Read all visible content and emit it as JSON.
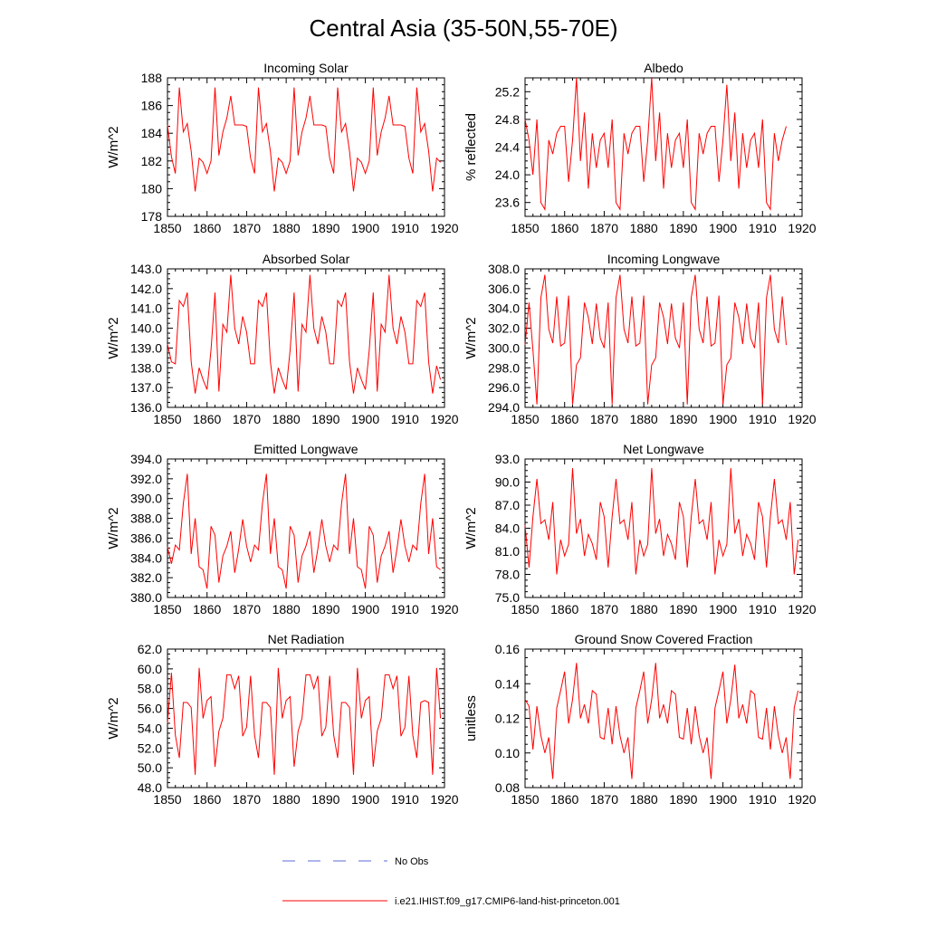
{
  "title": "Central Asia (35-50N,55-70E)",
  "legend": {
    "items": [
      {
        "label": "No Obs",
        "color": "#5b6bd6",
        "style": "dashed"
      },
      {
        "label": "i.e21.IHIST.f09_g17.CMIP6-land-hist-princeton.001",
        "color": "#ff0000",
        "style": "solid"
      }
    ]
  },
  "colors": {
    "series": "#ff0000",
    "axis": "#000000"
  },
  "chart_data": [
    {
      "type": "line",
      "title": "Incoming Solar",
      "xlabel": "",
      "ylabel": "W/m^2",
      "xlim": [
        1850,
        1920
      ],
      "ylim": [
        178,
        188
      ],
      "xticks": [
        "1850",
        "1860",
        "1870",
        "1880",
        "1890",
        "1900",
        "1910",
        "1920"
      ],
      "yticks": [
        "178",
        "180",
        "182",
        "184",
        "186",
        "188"
      ],
      "yticks_values": [
        178,
        180,
        182,
        184,
        186,
        188
      ],
      "x_start": 1850,
      "values": [
        184.6,
        182.3,
        181.1,
        187.3,
        184.1,
        184.7,
        182.7,
        179.8,
        182.2,
        181.9,
        181.1,
        182.0,
        187.3,
        182.4,
        184.1,
        185.1,
        186.7,
        184.6,
        184.6,
        184.6,
        184.5,
        182.2,
        181.1,
        187.3,
        184.1,
        184.7,
        182.7,
        179.8,
        182.2,
        181.9,
        181.1,
        182.0,
        187.3,
        182.4,
        184.1,
        185.1,
        186.7,
        184.6,
        184.6,
        184.6,
        184.5,
        182.2,
        181.1,
        187.3,
        184.1,
        184.7,
        182.7,
        179.8,
        182.2,
        181.9,
        181.1,
        182.0,
        187.3,
        182.4,
        184.1,
        185.1,
        186.7,
        184.6,
        184.6,
        184.6,
        184.5,
        182.2,
        181.1,
        187.3,
        184.1,
        184.7,
        182.7,
        179.8,
        182.2,
        181.9
      ]
    },
    {
      "type": "line",
      "title": "Albedo",
      "xlabel": "",
      "ylabel": "% reflected",
      "xlim": [
        1850,
        1920
      ],
      "ylim": [
        23.4,
        25.4
      ],
      "xticks": [
        "1850",
        "1860",
        "1870",
        "1880",
        "1890",
        "1900",
        "1910",
        "1920"
      ],
      "yticks": [
        "23.6",
        "24.0",
        "24.4",
        "24.8",
        "25.2"
      ],
      "yticks_values": [
        23.6,
        24.0,
        24.4,
        24.8,
        25.2
      ],
      "x_start": 1850,
      "values": [
        24.8,
        24.5,
        24.0,
        24.8,
        23.6,
        23.5,
        24.5,
        24.3,
        24.6,
        24.7,
        24.7,
        23.9,
        24.5,
        25.4,
        24.2,
        24.9,
        23.8,
        24.6,
        24.1,
        24.5,
        24.6,
        24.1,
        24.8,
        23.6,
        23.5,
        24.6,
        24.3,
        24.6,
        24.7,
        24.7,
        23.9,
        24.5,
        25.4,
        24.2,
        24.9,
        23.8,
        24.6,
        24.1,
        24.5,
        24.6,
        24.1,
        24.8,
        23.6,
        23.5,
        24.6,
        24.3,
        24.6,
        24.7,
        24.7,
        23.9,
        24.5,
        25.3,
        24.2,
        24.9,
        23.8,
        24.6,
        24.1,
        24.5,
        24.6,
        24.1,
        24.8,
        23.6,
        23.5,
        24.6,
        24.2,
        24.5,
        24.7
      ]
    },
    {
      "type": "line",
      "title": "Absorbed Solar",
      "xlabel": "",
      "ylabel": "W/m^2",
      "xlim": [
        1850,
        1920
      ],
      "ylim": [
        136.0,
        143.0
      ],
      "xticks": [
        "1850",
        "1860",
        "1870",
        "1880",
        "1890",
        "1900",
        "1910",
        "1920"
      ],
      "yticks": [
        "136.0",
        "137.0",
        "138.0",
        "139.0",
        "140.0",
        "141.0",
        "142.0",
        "143.0"
      ],
      "yticks_values": [
        136,
        137,
        138,
        139,
        140,
        141,
        142,
        143
      ],
      "x_start": 1850,
      "values": [
        139.2,
        138.3,
        138.2,
        141.4,
        141.1,
        141.8,
        138.3,
        136.7,
        138.0,
        137.4,
        136.9,
        138.9,
        141.8,
        136.8,
        140.2,
        139.8,
        142.7,
        140.0,
        139.2,
        140.6,
        139.8,
        138.2,
        138.2,
        141.4,
        141.1,
        141.8,
        138.3,
        136.7,
        138.0,
        137.4,
        136.9,
        138.9,
        141.8,
        136.8,
        140.2,
        139.8,
        142.7,
        140.0,
        139.2,
        140.6,
        139.8,
        138.2,
        138.2,
        141.4,
        141.1,
        141.8,
        138.3,
        136.7,
        138.0,
        137.4,
        136.9,
        138.9,
        141.8,
        136.8,
        140.2,
        139.8,
        142.7,
        140.0,
        139.2,
        140.6,
        139.8,
        138.2,
        138.2,
        141.4,
        141.1,
        141.8,
        138.3,
        136.7,
        138.1,
        137.4
      ]
    },
    {
      "type": "line",
      "title": "Incoming Longwave",
      "xlabel": "",
      "ylabel": "W/m^2",
      "xlim": [
        1850,
        1920
      ],
      "ylim": [
        294.0,
        308.0
      ],
      "xticks": [
        "1850",
        "1860",
        "1870",
        "1880",
        "1890",
        "1900",
        "1910",
        "1920"
      ],
      "yticks": [
        "294.0",
        "296.0",
        "298.0",
        "300.0",
        "302.0",
        "304.0",
        "306.0",
        "308.0"
      ],
      "yticks_values": [
        294,
        296,
        298,
        300,
        302,
        304,
        306,
        308
      ],
      "x_start": 1850,
      "values": [
        300.3,
        304.6,
        299.8,
        294.3,
        305.1,
        307.4,
        301.9,
        300.5,
        305.2,
        300.2,
        300.5,
        305.3,
        294.3,
        298.3,
        299.0,
        304.6,
        303.1,
        300.4,
        304.5,
        301.0,
        300.0,
        304.6,
        294.3,
        305.1,
        307.4,
        301.9,
        300.5,
        305.2,
        300.2,
        300.5,
        305.3,
        294.3,
        298.3,
        299.0,
        304.6,
        303.1,
        300.4,
        304.5,
        301.0,
        300.0,
        304.6,
        294.3,
        305.1,
        307.4,
        301.9,
        300.5,
        305.2,
        300.2,
        300.5,
        305.3,
        294.3,
        298.3,
        299.0,
        304.6,
        303.1,
        300.4,
        304.5,
        301.0,
        300.0,
        304.6,
        294.3,
        305.1,
        307.4,
        301.9,
        300.5,
        305.2,
        300.3
      ]
    },
    {
      "type": "line",
      "title": "Emitted Longwave",
      "xlabel": "",
      "ylabel": "W/m^2",
      "xlim": [
        1850,
        1920
      ],
      "ylim": [
        380.0,
        394.0
      ],
      "xticks": [
        "1850",
        "1860",
        "1870",
        "1880",
        "1890",
        "1900",
        "1910",
        "1920"
      ],
      "yticks": [
        "380.0",
        "382.0",
        "384.0",
        "386.0",
        "388.0",
        "390.0",
        "392.0",
        "394.0"
      ],
      "yticks_values": [
        380,
        382,
        384,
        386,
        388,
        390,
        392,
        394
      ],
      "x_start": 1850,
      "values": [
        385.1,
        383.4,
        385.3,
        384.8,
        389.5,
        392.5,
        384.4,
        388.0,
        383.1,
        382.8,
        380.9,
        387.2,
        386.3,
        381.5,
        384.2,
        385.2,
        386.7,
        382.5,
        384.9,
        387.9,
        385.2,
        383.6,
        385.3,
        384.8,
        389.5,
        392.5,
        384.4,
        388.0,
        383.1,
        382.8,
        380.9,
        387.2,
        386.3,
        381.5,
        384.2,
        385.2,
        386.7,
        382.5,
        384.9,
        387.9,
        385.2,
        383.6,
        385.3,
        384.8,
        389.5,
        392.5,
        384.4,
        388.0,
        383.1,
        382.8,
        380.9,
        387.2,
        386.3,
        381.5,
        384.2,
        385.2,
        386.7,
        382.5,
        384.9,
        387.9,
        385.2,
        383.6,
        385.3,
        384.8,
        389.5,
        392.5,
        384.4,
        388.0,
        383.1,
        382.8
      ]
    },
    {
      "type": "line",
      "title": "Net Longwave",
      "xlabel": "",
      "ylabel": "W/m^2",
      "xlim": [
        1850,
        1920
      ],
      "ylim": [
        75.0,
        93.0
      ],
      "xticks": [
        "1850",
        "1860",
        "1870",
        "1880",
        "1890",
        "1900",
        "1910",
        "1920"
      ],
      "yticks": [
        "75.0",
        "78.0",
        "81.0",
        "84.0",
        "87.0",
        "90.0",
        "93.0"
      ],
      "yticks_values": [
        75,
        78,
        81,
        84,
        87,
        90,
        93
      ],
      "x_start": 1850,
      "values": [
        84.4,
        78.9,
        85.5,
        90.4,
        84.6,
        85.1,
        82.5,
        87.4,
        78.0,
        82.5,
        80.4,
        81.9,
        91.8,
        83.3,
        85.2,
        80.4,
        83.2,
        82.0,
        79.9,
        87.4,
        85.5,
        78.9,
        85.5,
        90.4,
        84.6,
        85.1,
        82.5,
        87.4,
        78.0,
        82.5,
        80.4,
        81.9,
        91.8,
        83.3,
        85.2,
        80.4,
        83.2,
        82.0,
        79.9,
        87.4,
        85.5,
        78.9,
        85.5,
        90.4,
        84.6,
        85.1,
        82.5,
        87.4,
        78.0,
        82.5,
        80.4,
        81.9,
        91.8,
        83.3,
        85.2,
        80.4,
        83.2,
        82.0,
        79.9,
        87.4,
        85.5,
        78.9,
        85.5,
        90.4,
        84.6,
        85.1,
        82.5,
        87.4,
        78.0,
        82.5
      ]
    },
    {
      "type": "line",
      "title": "Net Radiation",
      "xlabel": "",
      "ylabel": "W/m^2",
      "xlim": [
        1850,
        1920
      ],
      "ylim": [
        48.0,
        62.0
      ],
      "xticks": [
        "1850",
        "1860",
        "1870",
        "1880",
        "1890",
        "1900",
        "1910",
        "1920"
      ],
      "yticks": [
        "48.0",
        "50.0",
        "52.0",
        "54.0",
        "56.0",
        "58.0",
        "60.0",
        "62.0"
      ],
      "yticks_values": [
        48,
        50,
        52,
        54,
        56,
        58,
        60,
        62
      ],
      "x_start": 1850,
      "values": [
        54.5,
        59.6,
        53.3,
        51.0,
        56.6,
        56.6,
        56.1,
        49.3,
        60.1,
        55.0,
        56.8,
        57.2,
        50.1,
        53.7,
        55.0,
        59.4,
        59.4,
        58.0,
        59.3,
        53.2,
        54.1,
        59.3,
        53.3,
        51.0,
        56.6,
        56.6,
        56.1,
        49.3,
        60.1,
        55.0,
        56.8,
        57.2,
        50.1,
        53.7,
        55.0,
        59.4,
        59.4,
        58.0,
        59.3,
        53.2,
        54.1,
        59.3,
        53.3,
        51.0,
        56.6,
        56.6,
        56.1,
        49.3,
        60.1,
        55.0,
        56.8,
        57.2,
        50.1,
        53.7,
        55.0,
        59.4,
        59.4,
        58.0,
        59.3,
        53.2,
        54.1,
        59.3,
        53.3,
        51.0,
        56.6,
        56.8,
        56.6,
        49.3,
        60.1,
        55.0
      ]
    },
    {
      "type": "line",
      "title": "Ground Snow Covered Fraction",
      "xlabel": "",
      "ylabel": "unitless",
      "xlim": [
        1850,
        1920
      ],
      "ylim": [
        0.08,
        0.16
      ],
      "xticks": [
        "1850",
        "1860",
        "1870",
        "1880",
        "1890",
        "1900",
        "1910",
        "1920"
      ],
      "yticks": [
        "0.08",
        "0.10",
        "0.12",
        "0.14",
        "0.16"
      ],
      "yticks_values": [
        0.08,
        0.1,
        0.12,
        0.14,
        0.16
      ],
      "x_start": 1850,
      "values": [
        0.131,
        0.127,
        0.102,
        0.127,
        0.11,
        0.1,
        0.109,
        0.085,
        0.126,
        0.136,
        0.147,
        0.117,
        0.131,
        0.152,
        0.12,
        0.128,
        0.117,
        0.136,
        0.134,
        0.109,
        0.108,
        0.126,
        0.105,
        0.127,
        0.11,
        0.1,
        0.109,
        0.085,
        0.126,
        0.136,
        0.147,
        0.117,
        0.131,
        0.152,
        0.12,
        0.128,
        0.117,
        0.136,
        0.134,
        0.109,
        0.108,
        0.126,
        0.105,
        0.127,
        0.11,
        0.1,
        0.109,
        0.085,
        0.126,
        0.136,
        0.147,
        0.117,
        0.131,
        0.151,
        0.12,
        0.128,
        0.117,
        0.136,
        0.134,
        0.109,
        0.108,
        0.126,
        0.102,
        0.127,
        0.11,
        0.1,
        0.109,
        0.085,
        0.126,
        0.136
      ]
    }
  ]
}
